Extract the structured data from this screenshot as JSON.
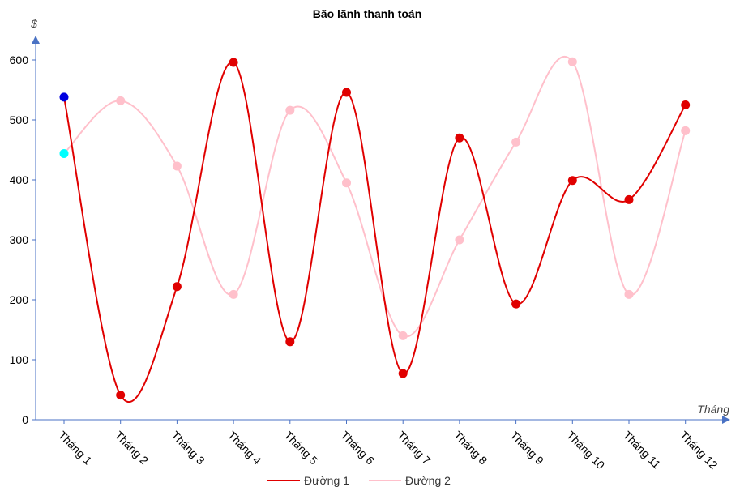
{
  "chart_data": {
    "type": "line",
    "title": "Bão lãnh thanh toán",
    "xlabel": "Tháng",
    "ylabel": "$",
    "categories": [
      "Tháng 1",
      "Tháng 2",
      "Tháng 3",
      "Tháng 4",
      "Tháng 5",
      "Tháng 6",
      "Tháng 7",
      "Tháng 8",
      "Tháng 9",
      "Tháng 10",
      "Tháng 11",
      "Tháng 12"
    ],
    "ylim": [
      0,
      600
    ],
    "yticks": [
      0,
      100,
      200,
      300,
      400,
      500,
      600
    ],
    "grid": false,
    "smooth": true,
    "legend_position": "bottom-center",
    "series": [
      {
        "name": "Đường 1",
        "color": "#e00000",
        "first_point_color": "#0000e0",
        "values": [
          538,
          41,
          222,
          596,
          130,
          546,
          77,
          470,
          193,
          399,
          367,
          525
        ]
      },
      {
        "name": "Đường 2",
        "color": "#ffc0cb",
        "first_point_color": "#00ffff",
        "values": [
          444,
          532,
          423,
          209,
          516,
          395,
          140,
          300,
          463,
          597,
          209,
          482
        ]
      }
    ]
  }
}
